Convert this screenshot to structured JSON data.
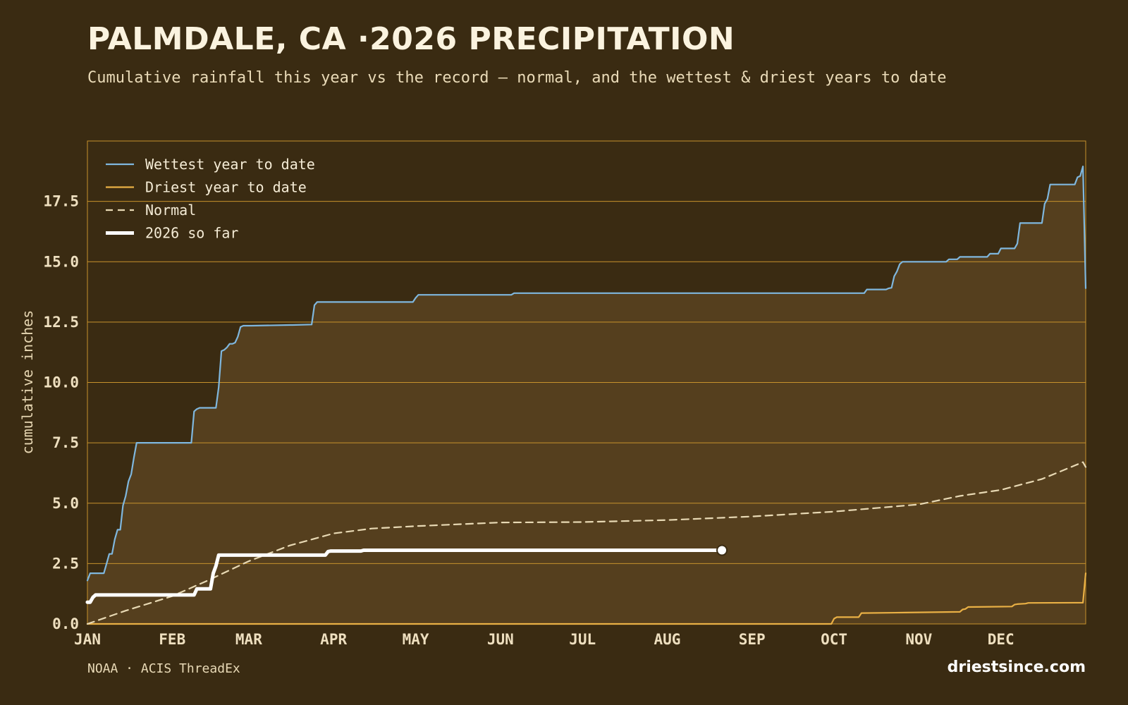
{
  "header": {
    "title": "PALMDALE, CA ·2026 PRECIPITATION",
    "subtitle": "Cumulative rainfall this year vs the record — normal, and the wettest & driest years to date"
  },
  "footer": {
    "source": "NOAA · ACIS ThreadEx",
    "brand": "driestsince.com"
  },
  "colors": {
    "background": "#3a2b12",
    "plot_fill": "#553f1e",
    "grid": "#c7922c",
    "wettest": "#7fb7de",
    "driest": "#e9b045",
    "normal": "#e8d9b4",
    "current": "#ffffff"
  },
  "chart_data": {
    "type": "line",
    "title": "PALMDALE, CA ·2026 PRECIPITATION",
    "subtitle": "Cumulative rainfall this year vs the record — normal, and the wettest & driest years to date",
    "ylabel": "cumulative inches",
    "xlabel": "",
    "x_unit": "day of year",
    "xlim": [
      1,
      366
    ],
    "ylim": [
      0,
      20
    ],
    "y_ticks": [
      0.0,
      2.5,
      5.0,
      7.5,
      10.0,
      12.5,
      15.0,
      17.5
    ],
    "y_tick_labels": [
      "0.0",
      "2.5",
      "5.0",
      "7.5",
      "10.0",
      "12.5",
      "15.0",
      "17.5"
    ],
    "x_ticks": [
      {
        "label": "JAN",
        "day": 1
      },
      {
        "label": "FEB",
        "day": 32
      },
      {
        "label": "MAR",
        "day": 60
      },
      {
        "label": "APR",
        "day": 91
      },
      {
        "label": "MAY",
        "day": 121
      },
      {
        "label": "JUN",
        "day": 152
      },
      {
        "label": "JUL",
        "day": 182
      },
      {
        "label": "AUG",
        "day": 213
      },
      {
        "label": "SEP",
        "day": 244
      },
      {
        "label": "OCT",
        "day": 274
      },
      {
        "label": "NOV",
        "day": 305
      },
      {
        "label": "DEC",
        "day": 335
      }
    ],
    "grid": true,
    "legend_position": "top-left",
    "series": [
      {
        "name": "Wettest year to date",
        "style": "solid",
        "x": [
          1,
          2,
          7,
          8,
          9,
          10,
          11,
          12,
          13,
          14,
          15,
          16,
          17,
          18,
          19,
          20,
          21,
          39,
          40,
          41,
          42,
          48,
          49,
          50,
          51,
          52,
          53,
          54,
          55,
          56,
          57,
          58,
          59,
          60,
          61,
          75,
          76,
          83,
          84,
          85,
          120,
          121,
          122,
          156,
          157,
          285,
          286,
          293,
          294,
          295,
          296,
          297,
          298,
          299,
          300,
          315,
          316,
          319,
          320,
          330,
          331,
          334,
          335,
          340,
          341,
          342,
          343,
          350,
          351,
          352,
          353,
          354,
          362,
          363,
          364,
          365,
          366
        ],
        "y": [
          1.8,
          2.1,
          2.1,
          2.5,
          2.9,
          2.9,
          3.5,
          3.9,
          3.9,
          4.9,
          5.3,
          5.9,
          6.2,
          6.9,
          7.5,
          7.5,
          7.5,
          7.5,
          8.8,
          8.9,
          8.95,
          8.95,
          9.8,
          11.3,
          11.35,
          11.45,
          11.6,
          11.6,
          11.65,
          11.9,
          12.3,
          12.35,
          12.35,
          12.35,
          12.35,
          12.38,
          12.38,
          12.4,
          13.2,
          13.33,
          13.33,
          13.5,
          13.63,
          13.63,
          13.7,
          13.7,
          13.85,
          13.85,
          13.9,
          13.92,
          14.4,
          14.6,
          14.9,
          15.0,
          15.0,
          15.0,
          15.1,
          15.1,
          15.2,
          15.2,
          15.33,
          15.33,
          15.55,
          15.55,
          15.75,
          16.6,
          16.6,
          16.6,
          17.4,
          17.6,
          18.2,
          18.2,
          18.2,
          18.5,
          18.55,
          18.95,
          13.9
        ]
      },
      {
        "name": "Driest year to date",
        "style": "solid",
        "x": [
          1,
          273,
          274,
          275,
          283,
          284,
          300,
          320,
          321,
          322,
          323,
          339,
          340,
          341,
          344,
          345,
          365,
          366
        ],
        "y": [
          0.0,
          0.0,
          0.22,
          0.28,
          0.28,
          0.45,
          0.47,
          0.5,
          0.6,
          0.62,
          0.7,
          0.72,
          0.8,
          0.82,
          0.84,
          0.87,
          0.88,
          2.1
        ]
      },
      {
        "name": "Normal",
        "style": "dashed",
        "x": [
          1,
          15,
          32,
          45,
          60,
          75,
          91,
          105,
          121,
          152,
          182,
          213,
          244,
          274,
          305,
          320,
          335,
          350,
          365,
          366
        ],
        "y": [
          0.0,
          0.55,
          1.15,
          1.8,
          2.6,
          3.25,
          3.75,
          3.95,
          4.05,
          4.2,
          4.22,
          4.3,
          4.45,
          4.65,
          4.95,
          5.3,
          5.55,
          6.0,
          6.7,
          6.5
        ]
      },
      {
        "name": "2026 so far",
        "style": "thick",
        "x": [
          1,
          2,
          3,
          4,
          40,
          41,
          42,
          46,
          47,
          48,
          49,
          50,
          51,
          88,
          89,
          90,
          101,
          102,
          233
        ],
        "y": [
          0.9,
          0.9,
          1.1,
          1.2,
          1.2,
          1.45,
          1.45,
          1.45,
          2.1,
          2.4,
          2.85,
          2.85,
          2.85,
          2.85,
          3.0,
          3.02,
          3.02,
          3.05,
          3.05
        ],
        "marker_last": true
      }
    ]
  }
}
